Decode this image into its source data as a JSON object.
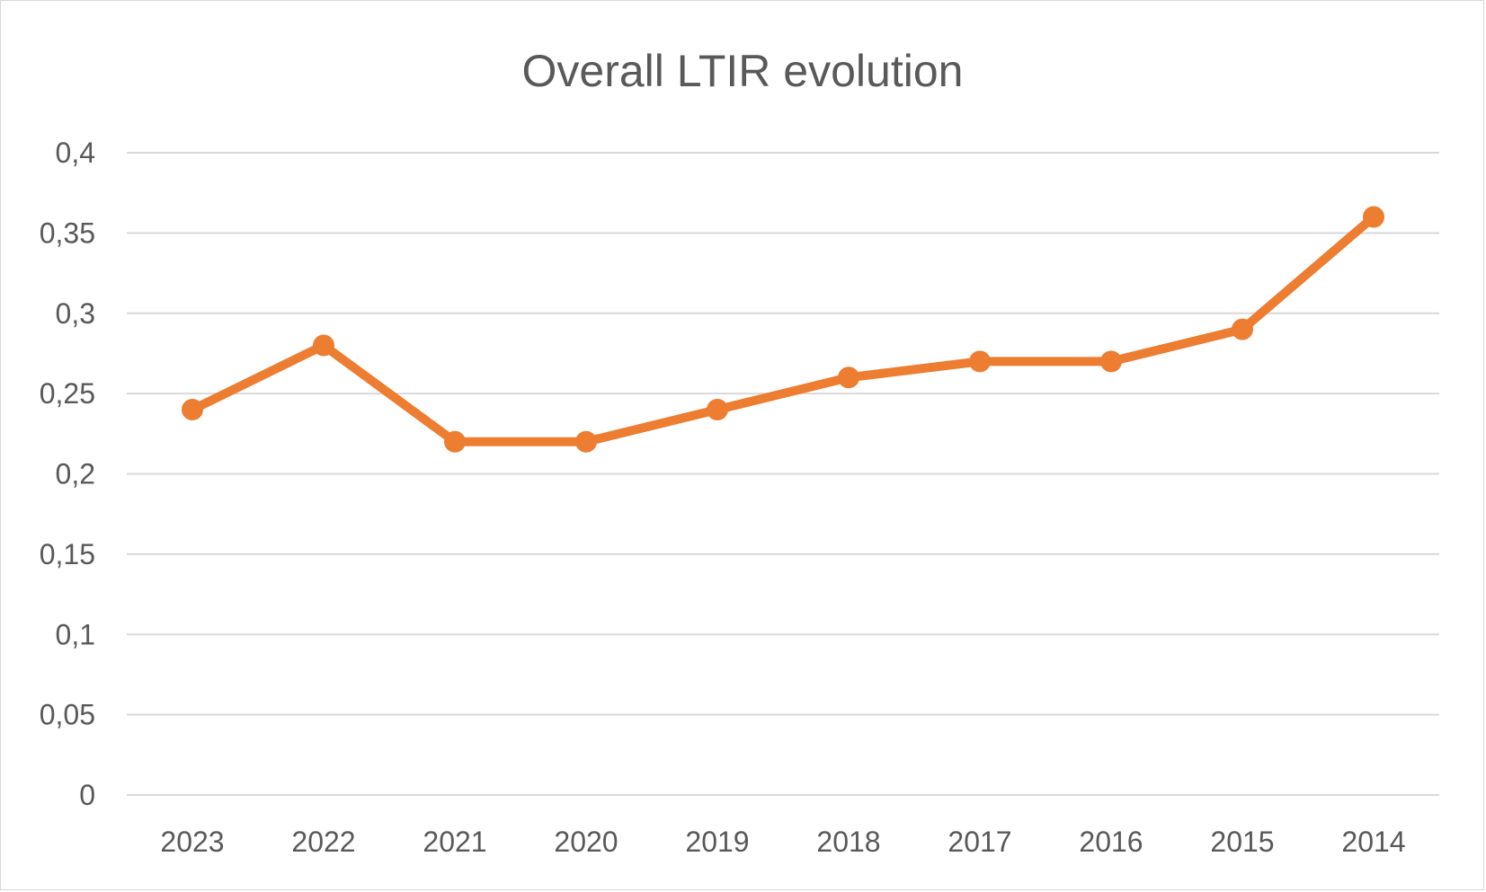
{
  "chart_data": {
    "type": "line",
    "title": "Overall LTIR evolution",
    "xlabel": "",
    "ylabel": "",
    "categories": [
      "2023",
      "2022",
      "2021",
      "2020",
      "2019",
      "2018",
      "2017",
      "2016",
      "2015",
      "2014"
    ],
    "series": [
      {
        "values": [
          0.24,
          0.28,
          0.22,
          0.22,
          0.24,
          0.26,
          0.27,
          0.27,
          0.29,
          0.36
        ]
      }
    ],
    "ylim": [
      0,
      0.4
    ],
    "yticks": [
      "0",
      "0,05",
      "0,1",
      "0,15",
      "0,2",
      "0,25",
      "0,3",
      "0,35",
      "0,4"
    ],
    "grid": true,
    "legend": "none",
    "colors": {
      "line": "#ED7D31",
      "grid": "#d9d9d9",
      "text": "#595959"
    }
  }
}
